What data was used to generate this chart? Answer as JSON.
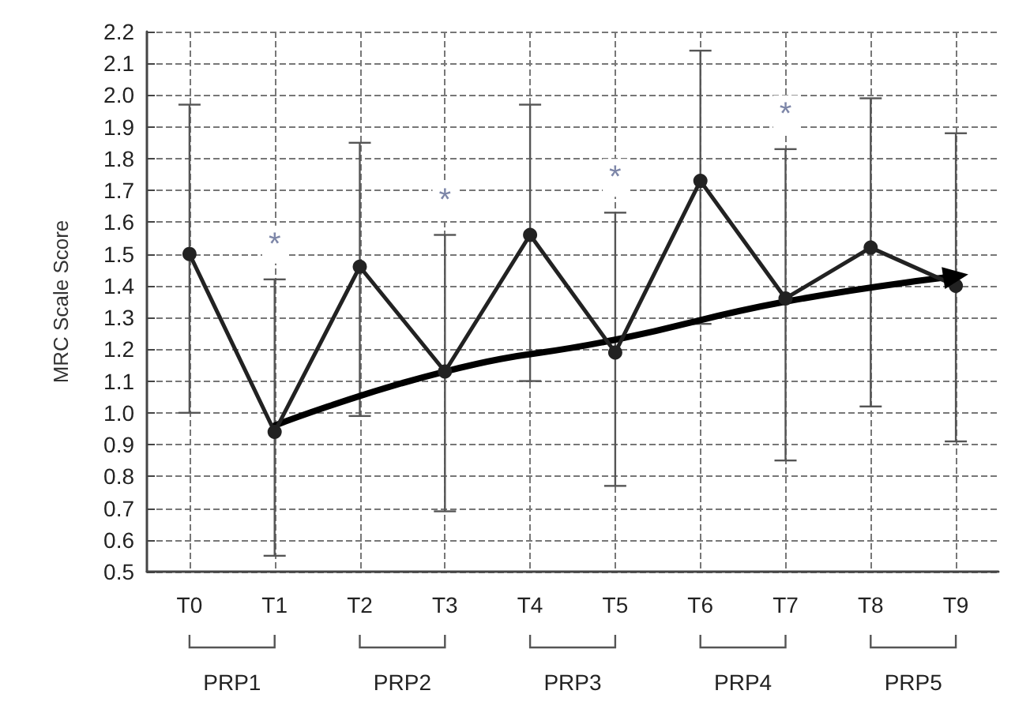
{
  "chart_data": {
    "type": "line",
    "ylabel": "MRC Scale Score",
    "categories": [
      "T0",
      "T1",
      "T2",
      "T3",
      "T4",
      "T5",
      "T6",
      "T7",
      "T8",
      "T9"
    ],
    "series": [
      {
        "color": "#222222",
        "values": [
          1.5,
          0.94,
          1.46,
          1.13,
          1.56,
          1.19,
          1.73,
          1.36,
          1.52,
          1.4
        ],
        "errors": [
          [
            1.0,
            1.97
          ],
          [
            0.55,
            1.42
          ],
          [
            0.99,
            1.85
          ],
          [
            0.69,
            1.56
          ],
          [
            1.1,
            1.97
          ],
          [
            0.77,
            1.63
          ],
          [
            1.28,
            2.14
          ],
          [
            0.85,
            1.83
          ],
          [
            1.02,
            1.99
          ],
          [
            0.91,
            1.88
          ]
        ],
        "marker": "circle"
      },
      {
        "type": "line",
        "color": "#000000",
        "x": [
          "T1",
          "T3",
          "T5",
          "T7",
          "T9"
        ],
        "values": [
          0.96,
          1.13,
          1.23,
          1.35,
          1.43
        ],
        "marker": "none"
      }
    ],
    "ylim": [
      0.5,
      2.2
    ],
    "yticks": [
      0.5,
      0.6,
      0.7,
      0.8,
      0.9,
      {
        "value": 1.0,
        "label": "1.0"
      },
      1.1,
      1.2,
      1.3,
      1.4,
      1.5,
      1.6,
      1.7,
      1.8,
      1.9,
      {
        "value": 2.0,
        "label": "2.0"
      },
      2.1,
      2.2
    ],
    "grid": true,
    "annotations": [
      "PRP1",
      "PRP2",
      "PRP3",
      "PRP4",
      "PRP5",
      "*",
      "*",
      "*",
      "*"
    ]
  }
}
